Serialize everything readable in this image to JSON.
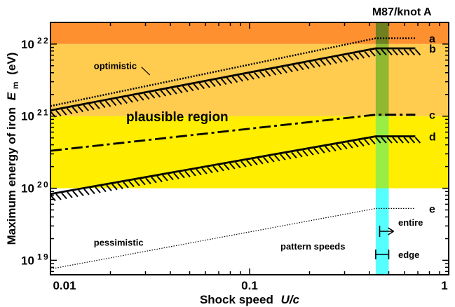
{
  "chart_data": {
    "type": "line",
    "title": "M87/knot A",
    "xlabel": {
      "text": "Shock speed",
      "var": "U/c"
    },
    "ylabel": {
      "text": "Maximum energy of iron",
      "var": "E",
      "sub": "m",
      "unit": "(eV)"
    },
    "xscale": "log",
    "yscale": "log",
    "xlim": [
      0.01,
      1
    ],
    "ylim": [
      18.8,
      22.3
    ],
    "xticks": [
      {
        "value": 0.01,
        "label": "0.01"
      },
      {
        "value": 0.1,
        "label": "0.1"
      },
      {
        "value": 1,
        "label": "1"
      }
    ],
    "yticks": [
      {
        "value": 19,
        "base": "10",
        "exp": "19"
      },
      {
        "value": 20,
        "base": "10",
        "exp": "20"
      },
      {
        "value": 21,
        "base": "10",
        "exp": "21"
      },
      {
        "value": 22,
        "base": "10",
        "exp": "22"
      }
    ],
    "bands": [
      {
        "id": "orange",
        "y": [
          22,
          22.3
        ],
        "color": "#ff9030"
      },
      {
        "id": "light-orange",
        "y": [
          21,
          22
        ],
        "color": "#ffcc50"
      },
      {
        "id": "yellow",
        "y": [
          20,
          21
        ],
        "color": "#ffee00"
      }
    ],
    "vband": {
      "x": [
        0.43,
        0.5
      ],
      "color": "#55ffff",
      "overlays": [
        {
          "y": [
            22,
            22.3
          ],
          "color": "#708020"
        },
        {
          "y": [
            21,
            22
          ],
          "color": "#90b830"
        },
        {
          "y": [
            20,
            21
          ],
          "color": "#99ee44"
        }
      ]
    },
    "series": [
      {
        "name": "a",
        "style": "dotted-thick",
        "points": [
          [
            0.01,
            21.14
          ],
          [
            0.43,
            22.08
          ],
          [
            0.68,
            22.08
          ]
        ]
      },
      {
        "name": "b",
        "style": "solid-hatched",
        "points": [
          [
            0.01,
            21.08
          ],
          [
            0.43,
            21.94
          ],
          [
            0.68,
            21.94
          ]
        ]
      },
      {
        "name": "c",
        "style": "dash-dot",
        "points": [
          [
            0.01,
            20.52
          ],
          [
            0.43,
            21.02
          ],
          [
            0.68,
            21.02
          ]
        ]
      },
      {
        "name": "d",
        "style": "solid-hatched",
        "points": [
          [
            0.01,
            19.92
          ],
          [
            0.43,
            20.72
          ],
          [
            0.68,
            20.72
          ]
        ]
      },
      {
        "name": "e",
        "style": "dotted-thin",
        "points": [
          [
            0.01,
            18.88
          ],
          [
            0.43,
            19.72
          ],
          [
            0.68,
            19.72
          ]
        ]
      }
    ],
    "region_labels": [
      {
        "text": "optimistic",
        "x": 0.0165,
        "y": 21.7
      },
      {
        "text": "plausible region",
        "x": 0.024,
        "y": 20.98
      },
      {
        "text": "pessimistic",
        "x": 0.0165,
        "y": 19.25
      }
    ],
    "pattern_speeds": {
      "label": "pattern speeds",
      "entire": {
        "text": "entire",
        "x": 0.45
      },
      "edge": {
        "text": "edge",
        "x": [
          0.43,
          0.5
        ]
      }
    }
  }
}
